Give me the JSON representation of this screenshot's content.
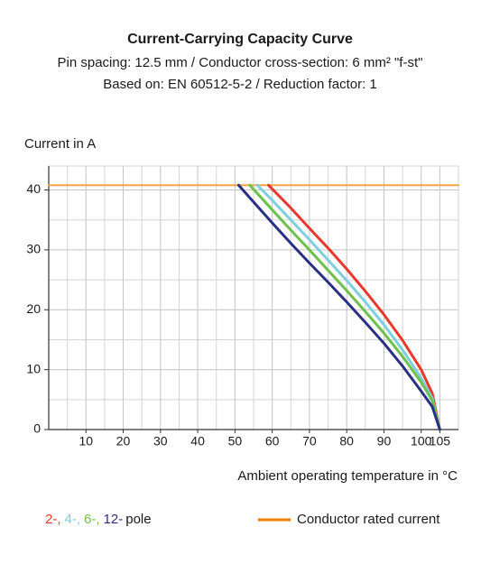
{
  "chart_data": {
    "type": "line",
    "title": "Current-Carrying Capacity Curve",
    "subtitle": [
      "Pin spacing: 12.5 mm / Conductor cross-section: 6 mm² \"f-st\"",
      "Based on: EN 60512-5-2 / Reduction factor: 1"
    ],
    "y_label": "Current in A",
    "x_label": "Ambient operating temperature in °C",
    "xlim": [
      0,
      110
    ],
    "ylim": [
      0,
      44
    ],
    "xticks": [
      10,
      20,
      30,
      40,
      50,
      60,
      70,
      80,
      90,
      100,
      105
    ],
    "yticks": [
      0,
      10,
      20,
      30,
      40
    ],
    "x_minor_grid": [
      5,
      15,
      25,
      35,
      45,
      55,
      65,
      75,
      85,
      95
    ],
    "y_minor_grid": [
      5,
      15,
      25,
      35
    ],
    "grid": true,
    "legend_suffix": "pole",
    "series": [
      {
        "name": "Conductor rated current",
        "color": "#f5a541",
        "legend_color": "#f07c00",
        "x": [
          0,
          110
        ],
        "values": [
          40.8,
          40.8
        ]
      },
      {
        "name": "2-,",
        "color": "#e8392b",
        "x": [
          59,
          65,
          70,
          75,
          80,
          85,
          90,
          95,
          100,
          103,
          105
        ],
        "values": [
          40.8,
          37.0,
          33.6,
          30.3,
          26.8,
          23.1,
          19.2,
          14.9,
          10.0,
          6.0,
          0
        ]
      },
      {
        "name": "4-,",
        "color": "#7fcfe0",
        "x": [
          56,
          60,
          65,
          70,
          75,
          80,
          85,
          90,
          95,
          100,
          103,
          105
        ],
        "values": [
          40.8,
          38.3,
          35.0,
          31.7,
          28.3,
          24.9,
          21.3,
          17.5,
          13.3,
          8.6,
          5.2,
          0
        ]
      },
      {
        "name": "6-,",
        "color": "#6cc24a",
        "x": [
          54,
          60,
          65,
          70,
          75,
          80,
          85,
          90,
          95,
          100,
          103,
          105
        ],
        "values": [
          40.8,
          36.7,
          33.3,
          30.0,
          26.6,
          23.2,
          19.7,
          16.1,
          12.2,
          7.9,
          4.8,
          0
        ]
      },
      {
        "name": "12-",
        "color": "#2a2f86",
        "x": [
          51,
          55,
          60,
          65,
          70,
          75,
          80,
          85,
          90,
          95,
          100,
          103,
          105
        ],
        "values": [
          40.8,
          38.0,
          34.5,
          31.1,
          27.8,
          24.6,
          21.3,
          17.9,
          14.4,
          10.6,
          6.4,
          3.8,
          0
        ]
      }
    ]
  }
}
